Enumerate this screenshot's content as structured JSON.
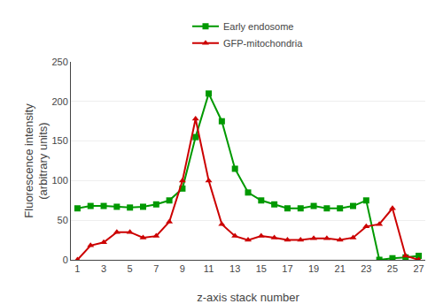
{
  "chart_data": {
    "type": "line",
    "x": [
      1,
      2,
      3,
      4,
      5,
      6,
      7,
      8,
      9,
      10,
      11,
      12,
      13,
      14,
      15,
      16,
      17,
      18,
      19,
      20,
      21,
      22,
      23,
      24,
      25,
      26,
      27
    ],
    "series": [
      {
        "name": "Early endosome",
        "color": "#009900",
        "marker": "square",
        "values": [
          65,
          68,
          68,
          67,
          66,
          67,
          70,
          75,
          90,
          155,
          210,
          175,
          115,
          85,
          75,
          70,
          65,
          65,
          68,
          65,
          65,
          68,
          75,
          0,
          2,
          3,
          5
        ]
      },
      {
        "name": "GFP-mitochondria",
        "color": "#cc0000",
        "marker": "triangle-up",
        "values": [
          0,
          18,
          22,
          35,
          35,
          28,
          30,
          48,
          100,
          178,
          100,
          45,
          30,
          25,
          30,
          28,
          25,
          25,
          27,
          27,
          25,
          28,
          42,
          45,
          65,
          5,
          0
        ]
      }
    ],
    "xlabel": "z-axis stack number",
    "ylabel": "Fluorescence intensity\n(arbitrary units)",
    "xlim": [
      0.5,
      27.5
    ],
    "xticks": [
      1,
      3,
      5,
      7,
      9,
      11,
      13,
      15,
      17,
      19,
      21,
      23,
      25,
      27
    ],
    "ylim": [
      0,
      250
    ],
    "yticks": [
      0,
      50,
      100,
      150,
      200,
      250
    ],
    "grid": true,
    "legend": "top"
  }
}
